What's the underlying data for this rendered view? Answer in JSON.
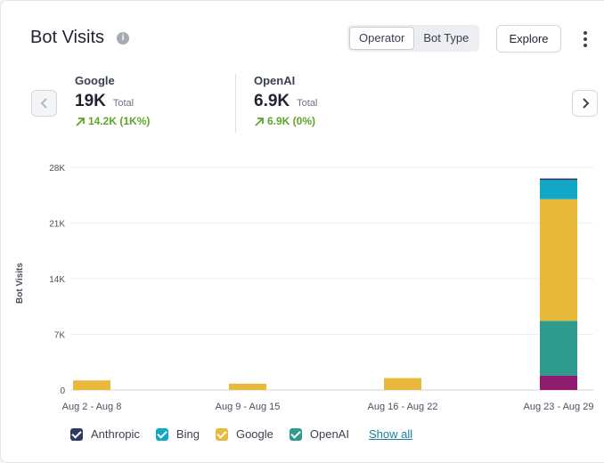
{
  "header": {
    "title": "Bot Visits",
    "segments": [
      "Operator",
      "Bot Type"
    ],
    "explore_label": "Explore"
  },
  "metrics": [
    {
      "name": "Google",
      "value": "19K",
      "sub": "Total",
      "change": "14.2K (1K%)"
    },
    {
      "name": "OpenAI",
      "value": "6.9K",
      "sub": "Total",
      "change": "6.9K (0%)"
    }
  ],
  "colors": {
    "Anthropic": "#2e3a66",
    "Bing": "#11a8c7",
    "Google": "#e8b93a",
    "OpenAI": "#2f9b8f",
    "Other": "#8e1b6e",
    "positive": "#5fa52a"
  },
  "chart_data": {
    "type": "bar",
    "stacked": true,
    "ylabel": "Bot Visits",
    "ylim": [
      0,
      28000
    ],
    "yticks": [
      "0",
      "7K",
      "14K",
      "21K",
      "28K"
    ],
    "categories": [
      "Aug 2 - Aug 8",
      "Aug 9 - Aug 15",
      "Aug 16 - Aug 22",
      "Aug 23 - Aug 29"
    ],
    "series": [
      {
        "key": "Other",
        "values": [
          0,
          0,
          0,
          1800
        ]
      },
      {
        "name": "OpenAI",
        "values": [
          0,
          0,
          0,
          6900
        ]
      },
      {
        "name": "Google",
        "values": [
          1200,
          800,
          1500,
          15300
        ]
      },
      {
        "name": "Bing",
        "values": [
          0,
          0,
          0,
          2400
        ]
      },
      {
        "name": "Anthropic",
        "values": [
          0,
          0,
          0,
          200
        ]
      }
    ]
  },
  "legend": {
    "items": [
      "Anthropic",
      "Bing",
      "Google",
      "OpenAI"
    ],
    "show_all": "Show all"
  }
}
